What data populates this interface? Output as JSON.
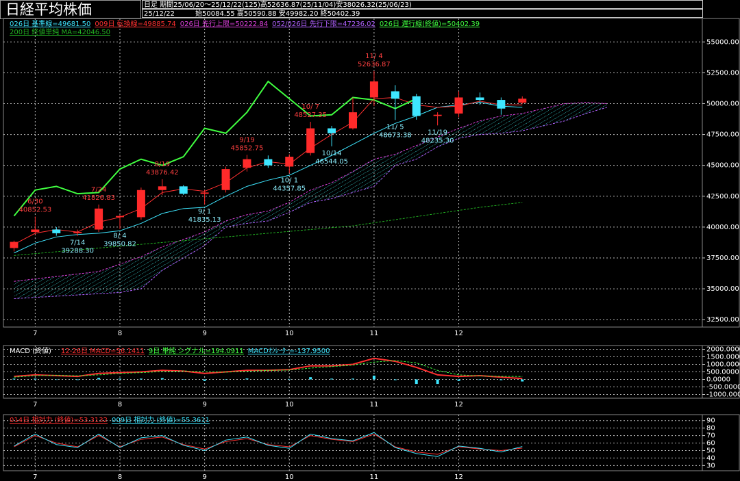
{
  "chart_data": [
    {
      "type": "candlestick",
      "title": "日経平均株価",
      "subtitle": "日足 期間25/06/20～25/12/22(125)高52636.87(25/11/04)安38026.32(25/06/23)",
      "date": "25/12/22",
      "ohlc_text": "始50084.55 高50590.88 安49982.20 終50402.39",
      "categories": [
        null,
        "7",
        null,
        null,
        null,
        "8",
        null,
        null,
        null,
        "9",
        null,
        null,
        null,
        "10",
        null,
        null,
        null,
        "11",
        null,
        null,
        null,
        "12",
        null,
        null,
        null,
        null,
        null,
        null,
        null,
        null,
        null,
        null,
        null
      ],
      "open": [
        38300,
        39600,
        39800,
        39500,
        39800,
        40800,
        40800,
        43000,
        43300,
        42700,
        43000,
        44800,
        45500,
        44900,
        46000,
        48000,
        48000,
        50500,
        51000,
        50600,
        49000,
        49200,
        50500,
        50300,
        50084.55,
        null,
        null,
        null,
        null,
        null,
        null,
        null,
        null
      ],
      "high": [
        38900,
        40852.53,
        40000,
        39800,
        41826.83,
        41000,
        43200,
        43876.42,
        43400,
        43000,
        44900,
        45852.75,
        45800,
        45900,
        48527.35,
        48200,
        50500,
        52636.87,
        51500,
        50800,
        49300,
        51000,
        50900,
        50500,
        50590.88,
        null,
        null,
        null,
        null,
        null,
        null,
        null,
        null
      ],
      "low": [
        38026.32,
        39400,
        39300,
        39288.3,
        39600,
        39850.82,
        40600,
        42600,
        42600,
        41835.13,
        42800,
        44500,
        44800,
        44357.85,
        45800,
        46544.05,
        47900,
        49800,
        48673.38,
        48700,
        48235.3,
        48900,
        49900,
        49100,
        49982.2,
        null,
        null,
        null,
        null,
        null,
        null,
        null,
        null
      ],
      "close": [
        38800,
        39800,
        39500,
        39600,
        41500,
        40900,
        43000,
        43300,
        42700,
        42800,
        44700,
        45500,
        45000,
        45700,
        48000,
        47600,
        49300,
        51800,
        50400,
        49000,
        49100,
        50500,
        50300,
        49600,
        50402.39,
        null,
        null,
        null,
        null,
        null,
        null,
        null,
        null
      ],
      "up_color": "#ff2a2a",
      "down_color": "#3ee6ff",
      "series": [
        {
          "name": "026日 基準線=49681.50",
          "color": "#3ee6ff",
          "style": "solid",
          "values": [
            37900,
            38700,
            39200,
            39400,
            39500,
            39700,
            40300,
            41100,
            41500,
            41600,
            42500,
            43300,
            43800,
            44200,
            45000,
            45800,
            46700,
            47600,
            48400,
            49000,
            49700,
            49900,
            50100,
            49800,
            49700,
            null,
            null,
            null,
            null,
            null,
            null,
            null,
            null
          ]
        },
        {
          "name": "009日 転換線=49885.74",
          "color": "#ff3030",
          "style": "solid",
          "values": [
            38600,
            39500,
            39800,
            39600,
            40400,
            40800,
            41500,
            42800,
            43100,
            42900,
            43600,
            44800,
            45300,
            45100,
            46400,
            47500,
            48500,
            50400,
            50500,
            49900,
            49700,
            49800,
            50200,
            49900,
            49900,
            null,
            null,
            null,
            null,
            null,
            null,
            null,
            null
          ]
        },
        {
          "name": "026日 先行上限=50222.84",
          "color": "#e040e0",
          "style": "cloud",
          "values": [
            35600,
            35800,
            36000,
            36200,
            36400,
            37000,
            37600,
            38400,
            39000,
            39600,
            40500,
            41000,
            41300,
            42000,
            43000,
            43600,
            44500,
            45500,
            45900,
            46600,
            47300,
            48000,
            48600,
            49000,
            49200,
            49600,
            50000,
            50100,
            50000,
            null,
            null,
            null,
            null
          ]
        },
        {
          "name": "052/026日 先行下限=47236.02",
          "color": "#b060ff",
          "style": "cloud",
          "values": [
            34200,
            34300,
            34400,
            34500,
            34600,
            34700,
            35000,
            36500,
            37500,
            38500,
            40000,
            40300,
            40500,
            41200,
            42000,
            42300,
            42800,
            43300,
            45000,
            45500,
            46500,
            47200,
            47500,
            47600,
            47800,
            48200,
            48600,
            49200,
            49700,
            null,
            null,
            null,
            null
          ]
        },
        {
          "name": "026日 遅行線(終値)=50402.39",
          "color": "#40ff40",
          "style": "thick",
          "values": [
            40900,
            43000,
            43300,
            42700,
            42800,
            44700,
            45500,
            45000,
            45700,
            48000,
            47600,
            49300,
            51800,
            50400,
            49000,
            49100,
            50500,
            50300,
            49600,
            50402.39,
            null,
            null,
            null,
            null,
            null,
            null,
            null,
            null,
            null,
            null,
            null,
            null,
            null
          ]
        },
        {
          "name": "200日 終値単純 MA=42046.50",
          "color": "#22b022",
          "style": "dashed",
          "values": [
            37700,
            37850,
            38000,
            38150,
            38300,
            38450,
            38600,
            38750,
            38900,
            39050,
            39200,
            39350,
            39500,
            39650,
            39800,
            39950,
            40100,
            40350,
            40600,
            40850,
            41100,
            41350,
            41600,
            41800,
            42000,
            null,
            null,
            null,
            null,
            null,
            null,
            null,
            null
          ]
        }
      ],
      "annotations": [
        {
          "date": "6/30",
          "value": 40852.53,
          "label": "40852.53"
        },
        {
          "date": "7/14",
          "value": 39288.3,
          "label": "39288.30"
        },
        {
          "date": "7/24",
          "value": 41826.83,
          "label": "41826.83"
        },
        {
          "date": "8/ 4",
          "value": 39850.82,
          "label": "39850.82"
        },
        {
          "date": "8/19",
          "value": 43876.42,
          "label": "43876.42"
        },
        {
          "date": "9/ 1",
          "value": 41835.13,
          "label": "41835.13"
        },
        {
          "date": "9/19",
          "value": 45852.75,
          "label": "45852.75"
        },
        {
          "date": "10/ 1",
          "value": 44357.85,
          "label": "44357.85"
        },
        {
          "date": "10/ 7",
          "value": 48527.35,
          "label": "48527.35"
        },
        {
          "date": "10/14",
          "value": 46544.05,
          "label": "46544.05"
        },
        {
          "date": "11/ 4",
          "value": 52636.87,
          "label": "52636.87"
        },
        {
          "date": "11/ 5",
          "value": 48673.38,
          "label": "48673.38"
        },
        {
          "date": "11/19",
          "value": 48235.3,
          "label": "48235.30"
        }
      ],
      "ylim": [
        31900,
        56900
      ],
      "yticks": [
        {
          "value": 32500,
          "label": "32500.00"
        },
        {
          "value": 35000,
          "label": "35000.00"
        },
        {
          "value": 37500,
          "label": "37500.00"
        },
        {
          "value": 40000,
          "label": "40000.00"
        },
        {
          "value": 42500,
          "label": "42500.00"
        },
        {
          "value": 45000,
          "label": "45000.00"
        },
        {
          "value": 47500,
          "label": "47500.00"
        },
        {
          "value": 50000,
          "label": "50000.00"
        },
        {
          "value": 52500,
          "label": "52500.00"
        },
        {
          "value": 55000,
          "label": "55000.00"
        }
      ],
      "grid": true
    },
    {
      "type": "line",
      "title": "MACD (終値)",
      "categories": [
        null,
        "7",
        null,
        null,
        null,
        "8",
        null,
        null,
        null,
        "9",
        null,
        null,
        null,
        "10",
        null,
        null,
        null,
        "11",
        null,
        null,
        null,
        "12",
        null,
        null,
        null,
        null,
        null,
        null,
        null,
        null,
        null,
        null,
        null
      ],
      "series": [
        {
          "name": "12-26日 MACD=56.1411",
          "color": "#ff3030",
          "style": "thick",
          "values": [
            200,
            300,
            250,
            200,
            400,
            450,
            500,
            600,
            550,
            400,
            500,
            600,
            600,
            650,
            900,
            900,
            1000,
            1400,
            1200,
            800,
            300,
            200,
            250,
            150,
            56.1411,
            null,
            null,
            null,
            null,
            null,
            null,
            null,
            null
          ]
        },
        {
          "name": "9日 単純 シグナル=194.0911",
          "color": "#40ff40",
          "style": "dashed",
          "values": [
            150,
            250,
            280,
            240,
            300,
            400,
            450,
            520,
            560,
            500,
            480,
            540,
            600,
            620,
            750,
            850,
            950,
            1150,
            1250,
            1100,
            600,
            300,
            230,
            200,
            194.0911,
            null,
            null,
            null,
            null,
            null,
            null,
            null,
            null
          ]
        },
        {
          "name": "MACDｵｼﾚｰﾀｰ=-137.9500",
          "color": "#3ee6ff",
          "style": "bar",
          "values": [
            50,
            50,
            -30,
            -40,
            100,
            50,
            50,
            80,
            -10,
            -100,
            20,
            60,
            0,
            30,
            150,
            50,
            50,
            250,
            -50,
            -300,
            -300,
            -100,
            20,
            -50,
            -137.95,
            null,
            null,
            null,
            null,
            null,
            null,
            null,
            null
          ]
        }
      ],
      "ylim": [
        -1250,
        2250
      ],
      "yticks": [
        {
          "value": -1000,
          "label": "-1000.0000"
        },
        {
          "value": -500,
          "label": "-500.0000"
        },
        {
          "value": 0,
          "label": "0.0000"
        },
        {
          "value": 500,
          "label": "500.0000"
        },
        {
          "value": 1000,
          "label": "1000.0000"
        },
        {
          "value": 1500,
          "label": "1500.0000"
        },
        {
          "value": 2000,
          "label": "2000.0000"
        }
      ],
      "grid": true
    },
    {
      "type": "line",
      "categories": [
        null,
        "7",
        null,
        null,
        null,
        "8",
        null,
        null,
        null,
        "9",
        null,
        null,
        null,
        "10",
        null,
        null,
        null,
        "11",
        null,
        null,
        null,
        "12",
        null,
        null,
        null,
        null,
        null,
        null,
        null,
        null,
        null,
        null,
        null
      ],
      "series": [
        {
          "name": "014日 相対力 (終値)=53.3132",
          "color": "#ff3030",
          "style": "solid",
          "values": [
            55,
            70,
            60,
            55,
            70,
            55,
            65,
            68,
            58,
            52,
            62,
            66,
            58,
            55,
            70,
            65,
            62,
            72,
            55,
            48,
            45,
            55,
            52,
            50,
            53.3132,
            null,
            null,
            null,
            null,
            null,
            null,
            null,
            null
          ]
        },
        {
          "name": "009日 相対力 (終値)=55.3611",
          "color": "#3ee6ff",
          "style": "solid",
          "values": [
            56,
            72,
            58,
            54,
            72,
            54,
            67,
            70,
            57,
            50,
            64,
            68,
            57,
            53,
            72,
            66,
            63,
            74,
            54,
            46,
            42,
            56,
            53,
            48,
            55.3611,
            null,
            null,
            null,
            null,
            null,
            null,
            null,
            null
          ]
        }
      ],
      "ylim": [
        23,
        98
      ],
      "yticks": [
        30,
        40,
        50,
        60,
        70,
        80,
        90
      ],
      "grid": true
    }
  ]
}
